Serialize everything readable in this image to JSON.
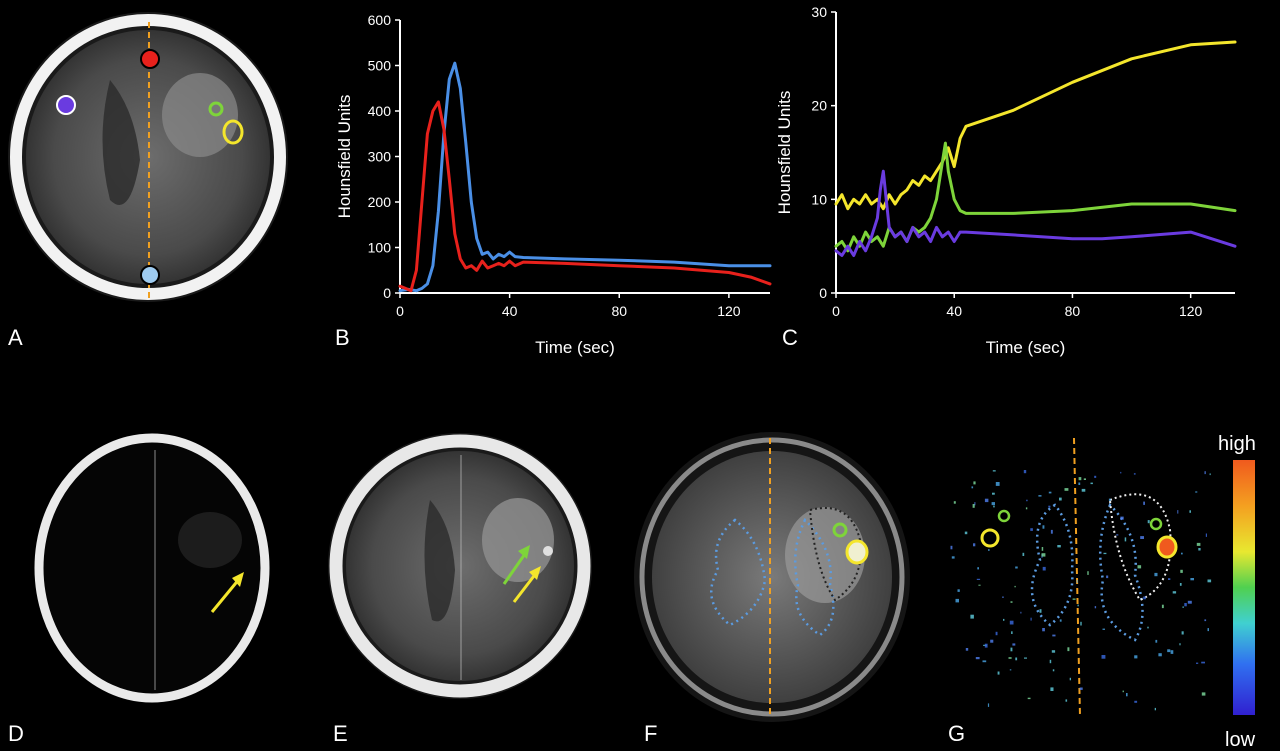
{
  "panels": {
    "A": "A",
    "B": "B",
    "C": "C",
    "D": "D",
    "E": "E",
    "F": "F",
    "G": "G"
  },
  "colorbar": {
    "high": "high",
    "low": "low"
  },
  "colors": {
    "red": "#e8211c",
    "blue": "#4a8fe6",
    "yellow": "#f4e62c",
    "green": "#7ed43a",
    "purple": "#6a3be0",
    "dashed_line": "#f0a020",
    "dotted_blue": "#5b9be0",
    "light_blue_roi": "#9ecbf0"
  },
  "chart_data": [
    {
      "type": "line",
      "panel": "B",
      "xlabel": "Time (sec)",
      "ylabel": "Hounsfield Units",
      "xlim": [
        0,
        135
      ],
      "ylim": [
        0,
        600
      ],
      "xticks": [
        0,
        40,
        80,
        120
      ],
      "yticks": [
        0,
        100,
        200,
        300,
        400,
        500,
        600
      ],
      "grid": false,
      "series": [
        {
          "color": "#4a8fe6",
          "x": [
            0,
            3,
            6,
            8,
            10,
            12,
            14,
            16,
            18,
            20,
            22,
            24,
            26,
            28,
            30,
            32,
            34,
            36,
            38,
            40,
            42,
            45,
            60,
            80,
            100,
            120,
            135
          ],
          "y": [
            5,
            8,
            5,
            10,
            20,
            60,
            180,
            350,
            470,
            505,
            450,
            330,
            200,
            120,
            85,
            90,
            75,
            85,
            80,
            90,
            80,
            78,
            75,
            72,
            68,
            60,
            60
          ]
        },
        {
          "color": "#e8211c",
          "x": [
            0,
            2,
            4,
            6,
            8,
            10,
            12,
            14,
            16,
            18,
            20,
            22,
            24,
            26,
            28,
            30,
            32,
            34,
            36,
            38,
            40,
            42,
            45,
            60,
            80,
            100,
            120,
            128,
            135
          ],
          "y": [
            15,
            10,
            5,
            50,
            200,
            350,
            400,
            420,
            360,
            250,
            130,
            75,
            55,
            60,
            50,
            70,
            55,
            60,
            65,
            60,
            70,
            60,
            68,
            65,
            60,
            55,
            45,
            35,
            20
          ]
        }
      ]
    },
    {
      "type": "line",
      "panel": "C",
      "xlabel": "Time (sec)",
      "ylabel": "Hounsfield Units",
      "xlim": [
        0,
        135
      ],
      "ylim": [
        0,
        30
      ],
      "xticks": [
        0,
        40,
        80,
        120
      ],
      "yticks": [
        0,
        10,
        20,
        30
      ],
      "grid": false,
      "series": [
        {
          "color": "#f4e62c",
          "x": [
            0,
            2,
            4,
            6,
            8,
            10,
            12,
            14,
            16,
            18,
            20,
            22,
            24,
            26,
            28,
            30,
            32,
            34,
            36,
            38,
            40,
            42,
            44,
            60,
            80,
            100,
            120,
            135
          ],
          "y": [
            9.5,
            10.5,
            9,
            10,
            9.5,
            10.5,
            9.5,
            10,
            9,
            10.5,
            9.5,
            10.5,
            11,
            12,
            11.5,
            12.5,
            12,
            13,
            14,
            15.5,
            13.5,
            16.5,
            17.8,
            19.5,
            22.5,
            25,
            26.5,
            26.8
          ]
        },
        {
          "color": "#7ed43a",
          "x": [
            0,
            2,
            4,
            6,
            8,
            10,
            12,
            14,
            16,
            18,
            20,
            22,
            24,
            26,
            28,
            30,
            32,
            34,
            36,
            37,
            38,
            40,
            42,
            44,
            60,
            80,
            100,
            120,
            135
          ],
          "y": [
            5,
            5.5,
            4.5,
            6,
            5,
            6.5,
            5.5,
            6,
            5,
            7,
            6,
            6.5,
            5.5,
            7,
            6.5,
            7,
            8,
            10,
            14,
            16,
            13,
            10,
            8.8,
            8.5,
            8.5,
            8.8,
            9.5,
            9.5,
            8.8
          ]
        },
        {
          "color": "#6a3be0",
          "x": [
            0,
            2,
            4,
            6,
            8,
            10,
            12,
            14,
            15,
            16,
            17,
            18,
            20,
            22,
            24,
            26,
            28,
            30,
            32,
            34,
            36,
            38,
            40,
            42,
            44,
            60,
            80,
            90,
            100,
            120,
            135
          ],
          "y": [
            4.5,
            4,
            5,
            4,
            5.5,
            4.5,
            6,
            8,
            11,
            13,
            10,
            7,
            6,
            6.5,
            5.5,
            7,
            6,
            6.5,
            5.5,
            7,
            6,
            6.5,
            5.5,
            6.5,
            6.5,
            6.2,
            5.8,
            5.8,
            6,
            6.5,
            5
          ]
        }
      ]
    }
  ]
}
